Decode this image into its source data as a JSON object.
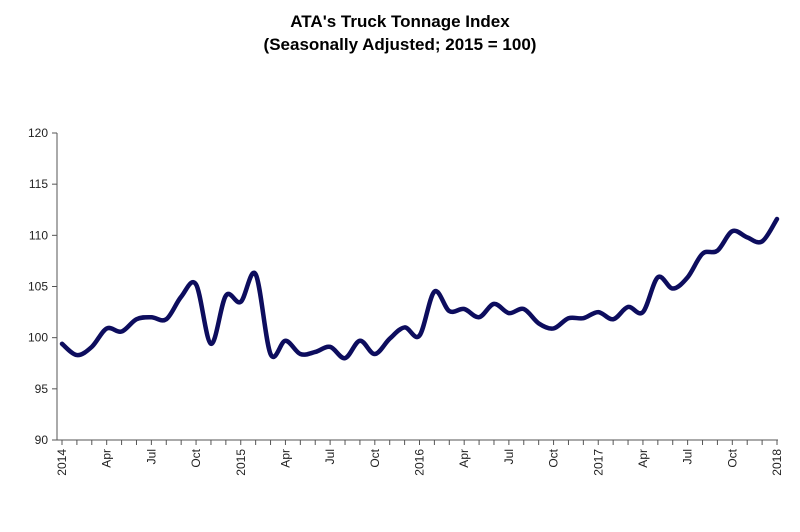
{
  "chart_data": {
    "type": "line",
    "title": "ATA's Truck Tonnage Index",
    "subtitle": "(Seasonally Adjusted; 2015 = 100)",
    "xlabel": "",
    "ylabel": "",
    "ylim": [
      90,
      120
    ],
    "yticks": [
      90,
      95,
      100,
      105,
      110,
      115,
      120
    ],
    "grid": false,
    "legend": "none",
    "line_color": "#0d0d5e",
    "x_tick_labels": [
      "2014",
      "Apr",
      "Jul",
      "Oct",
      "2015",
      "Apr",
      "Jul",
      "Oct",
      "2016",
      "Apr",
      "Jul",
      "Oct",
      "2017",
      "Apr",
      "Jul",
      "Oct",
      "2018"
    ],
    "x_range": [
      "2014-01",
      "2018-01"
    ],
    "series": [
      {
        "values": [
          99.4,
          98.3,
          99.1,
          100.9,
          100.6,
          101.8,
          102.0,
          101.8,
          104.0,
          105.2,
          99.4,
          104.1,
          103.5,
          106.2,
          98.4,
          99.7,
          98.4,
          98.6,
          99.1,
          98.0,
          99.7,
          98.4,
          99.9,
          101.0,
          100.2,
          104.5,
          102.6,
          102.8,
          102.0,
          103.3,
          102.4,
          102.8,
          101.4,
          100.9,
          101.9,
          101.9,
          102.5,
          101.8,
          103.0,
          102.5,
          105.9,
          104.8,
          105.9,
          108.2,
          108.5,
          110.4,
          109.8,
          109.4,
          111.6
        ]
      }
    ]
  }
}
